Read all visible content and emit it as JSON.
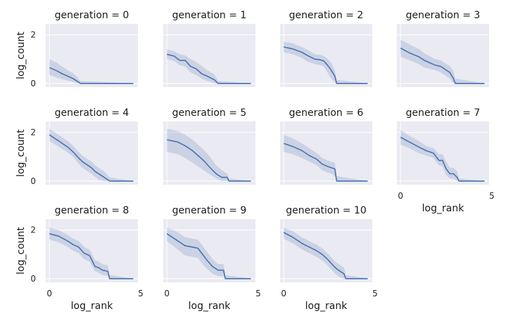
{
  "chart_data": {
    "type": "line",
    "layout": "facet-grid-4-columns",
    "xlabel": "log_rank",
    "ylabel": "log_count",
    "xlim": [
      -0.2,
      4.85
    ],
    "ylim": [
      -0.15,
      2.45
    ],
    "xticks": [
      0,
      5
    ],
    "yticks": [
      0,
      2
    ],
    "grid": true,
    "colors": {
      "line": "#4c72b0",
      "band": "#4c72b0",
      "background": "#eaeaf2",
      "grid": "#ffffff"
    },
    "panels": [
      {
        "title": "generation = 0",
        "x": [
          0,
          0.4,
          0.7,
          1.0,
          1.3,
          1.5,
          1.6,
          1.7,
          4.6
        ],
        "y": [
          0.65,
          0.52,
          0.4,
          0.3,
          0.2,
          0.1,
          0.05,
          0,
          0
        ],
        "lower": [
          0.35,
          0.25,
          0.18,
          0.12,
          0.06,
          0.02,
          0,
          0,
          0
        ],
        "upper": [
          1.0,
          0.85,
          0.7,
          0.55,
          0.42,
          0.28,
          0.18,
          0.1,
          0
        ]
      },
      {
        "title": "generation = 1",
        "x": [
          0,
          0.4,
          0.7,
          1.0,
          1.3,
          1.6,
          1.9,
          2.2,
          2.6,
          2.8,
          4.6
        ],
        "y": [
          1.2,
          1.12,
          0.95,
          0.95,
          0.7,
          0.6,
          0.4,
          0.3,
          0.15,
          0,
          0
        ],
        "lower": [
          1.0,
          0.92,
          0.75,
          0.7,
          0.45,
          0.35,
          0.2,
          0.1,
          0,
          0,
          0
        ],
        "upper": [
          1.4,
          1.32,
          1.2,
          1.15,
          1.0,
          0.88,
          0.72,
          0.55,
          0.38,
          0.1,
          0
        ]
      },
      {
        "title": "generation = 2",
        "x": [
          0,
          0.5,
          1.0,
          1.3,
          1.7,
          2.0,
          2.2,
          2.4,
          2.6,
          2.8,
          2.9,
          4.6
        ],
        "y": [
          1.5,
          1.42,
          1.28,
          1.15,
          1.0,
          0.97,
          0.92,
          0.75,
          0.55,
          0.3,
          0,
          0
        ],
        "lower": [
          1.28,
          1.2,
          1.05,
          0.9,
          0.8,
          0.75,
          0.7,
          0.45,
          0.2,
          0.05,
          0,
          0
        ],
        "upper": [
          1.72,
          1.65,
          1.5,
          1.38,
          1.2,
          1.18,
          1.12,
          1.02,
          0.85,
          0.55,
          0.15,
          0
        ]
      },
      {
        "title": "generation = 3",
        "x": [
          0,
          0.5,
          1.0,
          1.3,
          1.6,
          1.9,
          2.2,
          2.5,
          2.7,
          2.9,
          3.0,
          4.6
        ],
        "y": [
          1.45,
          1.25,
          1.1,
          0.95,
          0.85,
          0.75,
          0.7,
          0.55,
          0.45,
          0.2,
          0,
          0
        ],
        "lower": [
          1.1,
          0.95,
          0.8,
          0.65,
          0.6,
          0.55,
          0.45,
          0.3,
          0.2,
          0,
          0,
          0
        ],
        "upper": [
          1.8,
          1.6,
          1.42,
          1.25,
          1.12,
          1.0,
          0.95,
          0.8,
          0.72,
          0.5,
          0.2,
          0
        ]
      },
      {
        "title": "generation = 4",
        "x": [
          0,
          0.5,
          1.0,
          1.3,
          1.6,
          1.8,
          2.0,
          2.3,
          2.5,
          2.7,
          3.0,
          3.3,
          4.6
        ],
        "y": [
          1.9,
          1.65,
          1.4,
          1.2,
          0.95,
          0.8,
          0.7,
          0.55,
          0.4,
          0.3,
          0.15,
          0,
          0
        ],
        "lower": [
          1.65,
          1.42,
          1.18,
          1.0,
          0.72,
          0.55,
          0.45,
          0.3,
          0.18,
          0.05,
          0,
          0,
          0
        ],
        "upper": [
          2.15,
          1.9,
          1.65,
          1.45,
          1.2,
          1.05,
          0.95,
          0.8,
          0.65,
          0.55,
          0.4,
          0.15,
          0
        ]
      },
      {
        "title": "generation = 5",
        "x": [
          0,
          0.6,
          1.0,
          1.4,
          1.7,
          2.0,
          2.3,
          2.5,
          2.7,
          3.0,
          3.3,
          3.4,
          4.6
        ],
        "y": [
          1.7,
          1.6,
          1.45,
          1.25,
          1.05,
          0.85,
          0.6,
          0.45,
          0.3,
          0.15,
          0.15,
          0,
          0
        ],
        "lower": [
          1.2,
          1.1,
          0.95,
          0.75,
          0.6,
          0.45,
          0.3,
          0.2,
          0.1,
          0,
          0,
          0,
          0
        ],
        "upper": [
          2.15,
          2.05,
          1.9,
          1.7,
          1.5,
          1.3,
          1.05,
          0.85,
          0.65,
          0.45,
          0.3,
          0.1,
          0
        ]
      },
      {
        "title": "generation = 6",
        "x": [
          0,
          0.5,
          1.0,
          1.4,
          1.8,
          2.1,
          2.4,
          2.6,
          2.8,
          2.9,
          4.6
        ],
        "y": [
          1.55,
          1.42,
          1.25,
          1.05,
          0.9,
          0.7,
          0.6,
          0.55,
          0.5,
          0,
          0
        ],
        "lower": [
          1.2,
          1.1,
          0.95,
          0.8,
          0.65,
          0.45,
          0.35,
          0.3,
          0.2,
          0,
          0
        ],
        "upper": [
          1.9,
          1.75,
          1.55,
          1.35,
          1.15,
          0.95,
          0.85,
          0.8,
          0.75,
          0.2,
          0
        ]
      },
      {
        "title": "generation = 7",
        "x": [
          0,
          0.5,
          1.0,
          1.4,
          1.8,
          2.1,
          2.3,
          2.5,
          2.7,
          2.9,
          3.1,
          3.2,
          4.6
        ],
        "y": [
          1.8,
          1.6,
          1.4,
          1.25,
          1.15,
          0.85,
          0.85,
          0.5,
          0.3,
          0.3,
          0.15,
          0,
          0
        ],
        "lower": [
          1.5,
          1.35,
          1.15,
          1.05,
          0.95,
          0.65,
          0.6,
          0.25,
          0.1,
          0.1,
          0,
          0,
          0
        ],
        "upper": [
          2.1,
          1.85,
          1.65,
          1.45,
          1.35,
          1.1,
          1.1,
          0.8,
          0.55,
          0.55,
          0.4,
          0.1,
          0
        ]
      },
      {
        "title": "generation = 8",
        "x": [
          0,
          0.5,
          1.0,
          1.3,
          1.6,
          1.9,
          2.2,
          2.5,
          2.7,
          2.9,
          3.2,
          3.3,
          4.6
        ],
        "y": [
          1.85,
          1.75,
          1.55,
          1.4,
          1.3,
          1.05,
          0.95,
          0.5,
          0.45,
          0.35,
          0.3,
          0,
          0
        ],
        "lower": [
          1.6,
          1.5,
          1.3,
          1.15,
          1.05,
          0.8,
          0.7,
          0.3,
          0.25,
          0.15,
          0.1,
          0,
          0
        ],
        "upper": [
          2.1,
          2.0,
          1.8,
          1.65,
          1.55,
          1.3,
          1.2,
          0.75,
          0.7,
          0.6,
          0.55,
          0.15,
          0
        ]
      },
      {
        "title": "generation = 9",
        "x": [
          0,
          0.5,
          1.0,
          1.4,
          1.7,
          2.0,
          2.2,
          2.5,
          2.8,
          3.1,
          3.2,
          4.6
        ],
        "y": [
          1.85,
          1.6,
          1.35,
          1.3,
          1.25,
          0.95,
          0.75,
          0.5,
          0.35,
          0.35,
          0,
          0
        ],
        "lower": [
          1.55,
          1.25,
          0.95,
          0.9,
          0.85,
          0.55,
          0.4,
          0.2,
          0.1,
          0.1,
          0,
          0
        ],
        "upper": [
          2.1,
          1.95,
          1.7,
          1.65,
          1.6,
          1.3,
          1.1,
          0.8,
          0.6,
          0.6,
          0.15,
          0
        ]
      },
      {
        "title": "generation = 10",
        "x": [
          0,
          0.5,
          1.0,
          1.4,
          1.8,
          2.1,
          2.4,
          2.7,
          2.9,
          3.1,
          3.3,
          3.4,
          4.6
        ],
        "y": [
          1.9,
          1.7,
          1.45,
          1.3,
          1.15,
          1.0,
          0.8,
          0.55,
          0.4,
          0.3,
          0.2,
          0,
          0
        ],
        "lower": [
          1.65,
          1.45,
          1.2,
          1.05,
          0.9,
          0.75,
          0.55,
          0.3,
          0.15,
          0.05,
          0,
          0,
          0
        ],
        "upper": [
          2.1,
          1.95,
          1.7,
          1.55,
          1.4,
          1.25,
          1.05,
          0.8,
          0.65,
          0.55,
          0.45,
          0.15,
          0
        ]
      }
    ]
  }
}
